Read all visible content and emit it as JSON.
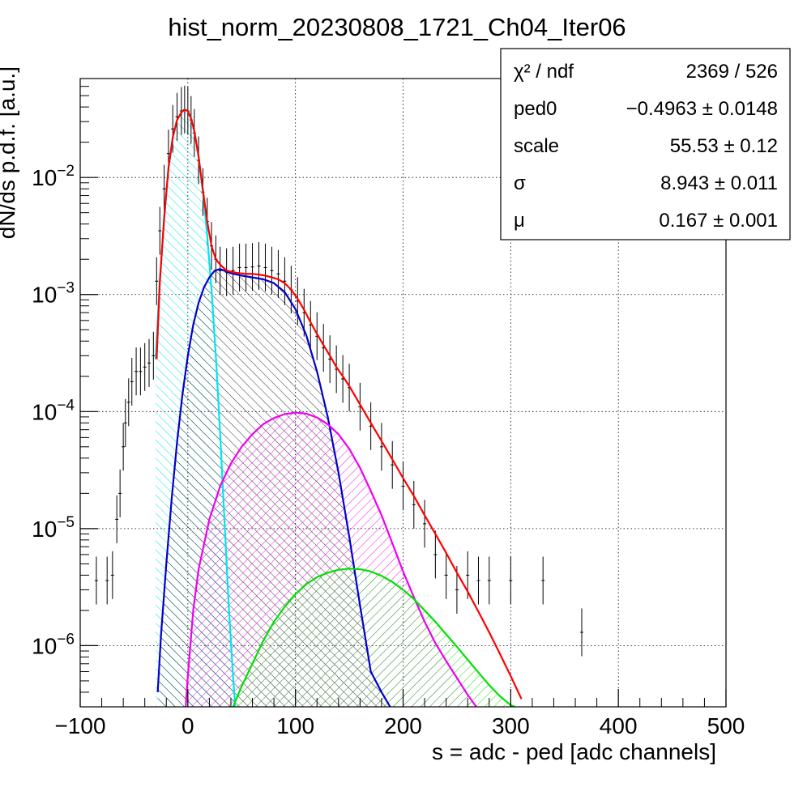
{
  "chart_data": {
    "type": "line",
    "title": "hist_norm_20230808_1721_Ch04_Iter06",
    "xlabel": "s = adc - ped [adc channels]",
    "ylabel": "dN/ds p.d.f. [a.u.]",
    "xlim": [
      -100,
      500
    ],
    "ylim": [
      3e-07,
      0.07
    ],
    "y_scale": "log",
    "grid": true,
    "x_ticks": [
      -100,
      0,
      100,
      200,
      300,
      400,
      500
    ],
    "x_tick_labels": [
      "−100",
      "0",
      "100",
      "200",
      "300",
      "400",
      "500"
    ],
    "y_ticks": [
      1e-06,
      1e-05,
      0.0001,
      0.001,
      0.01
    ],
    "y_tick_labels": [
      {
        "base": "10",
        "exp": "−6"
      },
      {
        "base": "10",
        "exp": "−5"
      },
      {
        "base": "10",
        "exp": "−4"
      },
      {
        "base": "10",
        "exp": "−3"
      },
      {
        "base": "10",
        "exp": "−2"
      }
    ],
    "stats": [
      {
        "label": "χ² / ndf",
        "value": "2369 / 526"
      },
      {
        "label": "ped0",
        "value": "−0.4963 ± 0.0148"
      },
      {
        "label": "scale",
        "value": "55.53 ± 0.12"
      },
      {
        "label": "σ",
        "value": "8.943 ± 0.011"
      },
      {
        "label": "μ",
        "value": "0.167 ± 0.001"
      }
    ],
    "data_points": {
      "x": [
        -85,
        -75,
        -70,
        -66,
        -63,
        -60,
        -58,
        -55,
        -52,
        -48,
        -44,
        -40,
        -36,
        -32,
        -29,
        -26,
        -22,
        -18,
        -14,
        -10,
        -6,
        -3,
        0,
        3,
        6,
        10,
        14,
        18,
        22,
        26,
        30,
        36,
        42,
        48,
        54,
        60,
        66,
        72,
        78,
        84,
        90,
        96,
        102,
        108,
        114,
        120,
        126,
        132,
        138,
        144,
        150,
        160,
        170,
        180,
        190,
        200,
        210,
        220,
        230,
        240,
        250,
        260,
        270,
        280,
        300,
        330,
        366
      ],
      "y": [
        3.6e-06,
        3.6e-06,
        4e-06,
        1.2e-05,
        2e-05,
        5e-05,
        8e-05,
        0.00012,
        0.00018,
        0.00022,
        0.00022,
        0.00024,
        0.00026,
        0.0003,
        0.0013,
        0.0035,
        0.008,
        0.016,
        0.026,
        0.033,
        0.037,
        0.038,
        0.037,
        0.031,
        0.024,
        0.014,
        0.0075,
        0.0042,
        0.0026,
        0.002,
        0.0016,
        0.00155,
        0.0016,
        0.0017,
        0.0017,
        0.00172,
        0.00175,
        0.0017,
        0.0016,
        0.0015,
        0.0013,
        0.0011,
        0.00088,
        0.0007,
        0.00055,
        0.00044,
        0.00035,
        0.00028,
        0.00023,
        0.00019,
        0.00016,
        0.00011,
        7.5e-05,
        5e-05,
        3.5e-05,
        2.3e-05,
        1.6e-05,
        1.1e-05,
        6e-06,
        4e-06,
        3e-06,
        4e-06,
        3.6e-06,
        3.6e-06,
        3.6e-06,
        3.6e-06,
        1.3e-06
      ]
    },
    "series": [
      {
        "color": "#ff0000",
        "hatch": "none",
        "x": [
          -29,
          -26,
          -22,
          -18,
          -14,
          -10,
          -6,
          -3,
          0,
          3,
          6,
          10,
          14,
          18,
          22,
          26,
          30,
          36,
          42,
          48,
          54,
          60,
          66,
          72,
          78,
          84,
          90,
          96,
          102,
          108,
          114,
          120,
          126,
          132,
          138,
          144,
          150,
          160,
          170,
          180,
          190,
          200,
          210,
          220,
          230,
          240,
          250,
          260,
          270,
          280,
          290,
          300,
          310
        ],
        "y": [
          0.00028,
          0.0013,
          0.0045,
          0.012,
          0.022,
          0.031,
          0.036,
          0.038,
          0.037,
          0.032,
          0.025,
          0.015,
          0.0078,
          0.0042,
          0.0026,
          0.002,
          0.0018,
          0.0016,
          0.00155,
          0.00152,
          0.0015,
          0.0015,
          0.00148,
          0.00145,
          0.0014,
          0.00135,
          0.00125,
          0.0011,
          0.00092,
          0.00074,
          0.00058,
          0.00046,
          0.00037,
          0.0003,
          0.00024,
          0.0002,
          0.000165,
          0.000115,
          8e-05,
          5.6e-05,
          3.9e-05,
          2.7e-05,
          1.9e-05,
          1.3e-05,
          9e-06,
          6.2e-06,
          4.2e-06,
          2.9e-06,
          1.95e-06,
          1.3e-06,
          8.5e-07,
          5.5e-07,
          3.5e-07
        ]
      },
      {
        "color": "#00e5ee",
        "hatch": "cyan",
        "x": [
          -30,
          -26,
          -22,
          -18,
          -14,
          -10,
          -6,
          -3,
          0,
          3,
          6,
          10,
          14,
          18,
          22,
          26,
          30,
          34,
          38,
          42,
          44
        ],
        "y": [
          0.00028,
          0.0013,
          0.0045,
          0.012,
          0.022,
          0.031,
          0.036,
          0.038,
          0.037,
          0.032,
          0.025,
          0.015,
          0.0075,
          0.0032,
          0.0011,
          0.0003,
          6.5e-05,
          1.2e-05,
          2.2e-06,
          5.5e-07,
          3e-07
        ]
      },
      {
        "color": "#0000cc",
        "hatch": "black",
        "x": [
          -28,
          -25,
          -20,
          -15,
          -10,
          -5,
          0,
          5,
          10,
          15,
          20,
          25,
          30,
          40,
          50,
          60,
          70,
          80,
          90,
          100,
          110,
          120,
          130,
          140,
          150,
          160,
          170,
          180,
          188
        ],
        "y": [
          4e-07,
          1.2e-06,
          5e-06,
          1.8e-05,
          5.5e-05,
          0.00014,
          0.0003,
          0.00055,
          0.00085,
          0.00115,
          0.0014,
          0.0016,
          0.00165,
          0.00152,
          0.00145,
          0.0014,
          0.00135,
          0.00125,
          0.00105,
          0.00075,
          0.00045,
          0.00022,
          9e-05,
          3e-05,
          8.5e-06,
          2.2e-06,
          6e-07,
          4e-07,
          3e-07
        ]
      },
      {
        "color": "#ee00ee",
        "hatch": "magenta",
        "x": [
          -2,
          0,
          5,
          10,
          20,
          30,
          40,
          50,
          60,
          70,
          80,
          90,
          100,
          110,
          120,
          130,
          140,
          150,
          160,
          170,
          180,
          190,
          200,
          210,
          220,
          230,
          240,
          250,
          260,
          268
        ],
        "y": [
          3e-07,
          5.5e-07,
          2e-06,
          4.5e-06,
          1.2e-05,
          2.3e-05,
          3.6e-05,
          5e-05,
          6.4e-05,
          7.8e-05,
          8.8e-05,
          9.5e-05,
          9.8e-05,
          9.6e-05,
          8.9e-05,
          7.8e-05,
          6.4e-05,
          4.8e-05,
          3.3e-05,
          2.1e-05,
          1.3e-05,
          7.5e-06,
          4.3e-06,
          2.6e-06,
          1.6e-06,
          1.05e-06,
          7.4e-07,
          5.3e-07,
          3.8e-07,
          3e-07
        ]
      },
      {
        "color": "#00e000",
        "hatch": "green",
        "x": [
          42,
          50,
          60,
          70,
          80,
          90,
          100,
          110,
          120,
          130,
          140,
          150,
          160,
          170,
          180,
          190,
          200,
          210,
          220,
          230,
          240,
          250,
          260,
          270,
          280,
          290,
          300,
          304
        ],
        "y": [
          3e-07,
          4.5e-07,
          7e-07,
          1.1e-06,
          1.6e-06,
          2.15e-06,
          2.75e-06,
          3.35e-06,
          3.85e-06,
          4.2e-06,
          4.45e-06,
          4.55e-06,
          4.5e-06,
          4.3e-06,
          3.95e-06,
          3.5e-06,
          3e-06,
          2.5e-06,
          2e-06,
          1.6e-06,
          1.25e-06,
          9.8e-07,
          7.6e-07,
          5.9e-07,
          4.6e-07,
          3.7e-07,
          3.1e-07,
          3e-07
        ]
      }
    ]
  }
}
